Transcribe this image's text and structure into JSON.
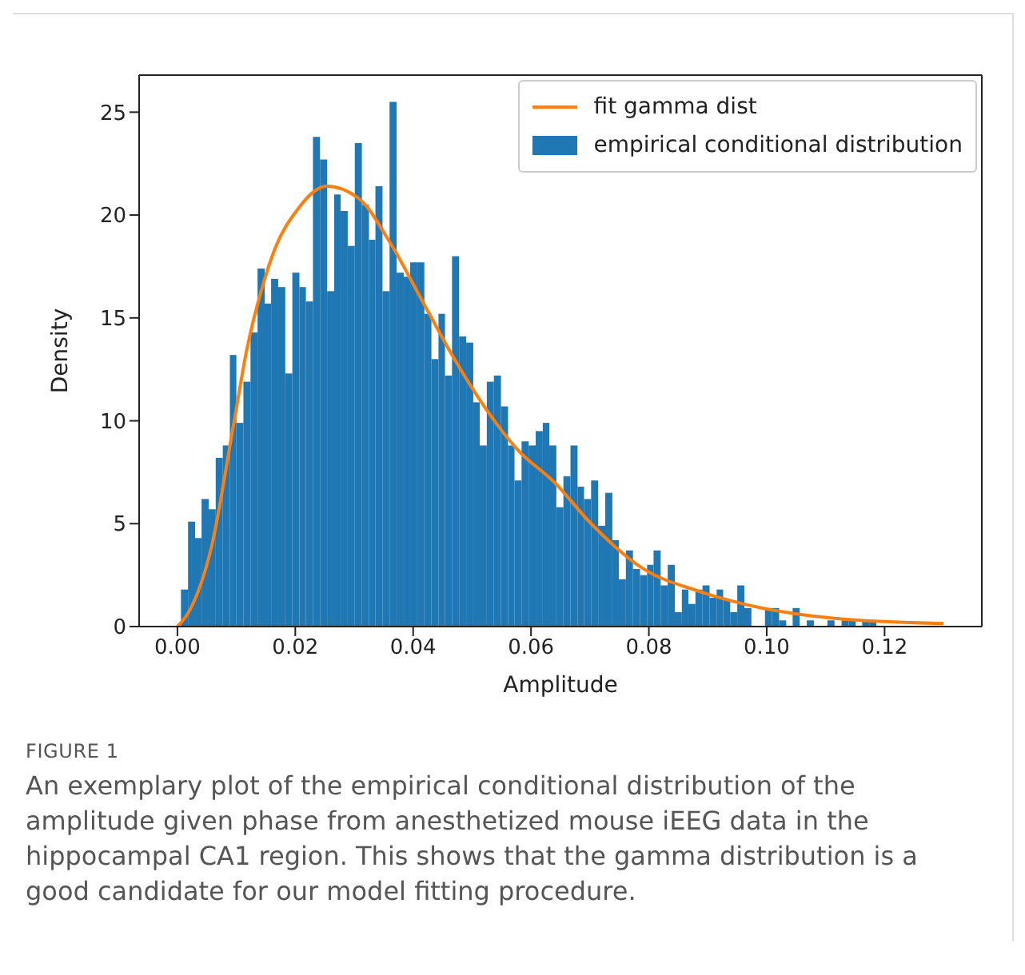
{
  "chart_data": {
    "type": "histogram",
    "xlabel": "Amplitude",
    "ylabel": "Density",
    "xlim": [
      -0.0065,
      0.1365
    ],
    "ylim": [
      0,
      26.8
    ],
    "xticks": [
      {
        "value": 0,
        "label": "0.00"
      },
      {
        "value": 0.02,
        "label": "0.02"
      },
      {
        "value": 0.04,
        "label": "0.04"
      },
      {
        "value": 0.06,
        "label": "0.06"
      },
      {
        "value": 0.08,
        "label": "0.08"
      },
      {
        "value": 0.1,
        "label": "0.10"
      },
      {
        "value": 0.12,
        "label": "0.12"
      }
    ],
    "yticks": [
      0,
      5,
      10,
      15,
      20,
      25
    ],
    "grid": false,
    "legend": "top right",
    "series": [
      {
        "type": "line",
        "name": "fit gamma dist",
        "color": "#ff7f0e",
        "x": [
          0,
          0.0022,
          0.0058,
          0.0094,
          0.0118,
          0.0142,
          0.0166,
          0.0202,
          0.0253,
          0.0308,
          0.036,
          0.0416,
          0.047,
          0.0523,
          0.0577,
          0.064,
          0.0702,
          0.0791,
          0.0881,
          0.096,
          0.1115,
          0.13
        ],
        "values": [
          0,
          0.85,
          3.9,
          9.6,
          13.5,
          16.3,
          18.4,
          20.2,
          21.4,
          20.8,
          18.7,
          15.8,
          13.0,
          10.6,
          8.6,
          7.0,
          5.0,
          2.8,
          1.75,
          1.1,
          0.4,
          0.15
        ]
      },
      {
        "name": "empirical conditional distribution",
        "color": "#1f77b4",
        "bins": [
          0.0006,
          0.0018,
          0.003,
          0.0041,
          0.0053,
          0.0065,
          0.0077,
          0.0089,
          0.01,
          0.0112,
          0.0124,
          0.0136,
          0.0148,
          0.0159,
          0.0171,
          0.0183,
          0.0195,
          0.0207,
          0.0218,
          0.023,
          0.0242,
          0.0254,
          0.0266,
          0.0277,
          0.0289,
          0.0301,
          0.0313,
          0.0325,
          0.0336,
          0.0348,
          0.036,
          0.0372,
          0.0384,
          0.0395,
          0.0407,
          0.0419,
          0.0431,
          0.0443,
          0.0454,
          0.0466,
          0.0478,
          0.049,
          0.0502,
          0.0513,
          0.0525,
          0.0537,
          0.0549,
          0.0561,
          0.0572,
          0.0584,
          0.0596,
          0.0608,
          0.062,
          0.0631,
          0.0643,
          0.0655,
          0.0667,
          0.0679,
          0.069,
          0.0702,
          0.0714,
          0.0726,
          0.0738,
          0.0749,
          0.0761,
          0.0773,
          0.0785,
          0.0797,
          0.0808,
          0.082,
          0.0832,
          0.0844,
          0.0856,
          0.0867,
          0.0879,
          0.0891,
          0.0903,
          0.0915,
          0.0926,
          0.0938,
          0.095,
          0.0962,
          0.0974,
          0.0997,
          0.1009,
          0.1021,
          0.1033,
          0.1044,
          0.1056,
          0.1068,
          0.108,
          0.1103,
          0.1115,
          0.1127,
          0.1139,
          0.1151,
          0.1162,
          0.1174,
          0.1186
        ],
        "values": [
          1.8,
          5.1,
          4.3,
          6.2,
          5.7,
          8.2,
          8.8,
          13.2,
          9.9,
          11.9,
          14.3,
          17.4,
          15.7,
          16.9,
          16.5,
          12.3,
          17.2,
          16.5,
          15.8,
          23.8,
          22.7,
          16.3,
          21.0,
          20.2,
          18.5,
          23.5,
          20.5,
          18.8,
          21.4,
          16.3,
          25.5,
          17.2,
          17.0,
          17.7,
          17.7,
          15.2,
          13.0,
          15.2,
          12.2,
          18.0,
          14.1,
          13.8,
          10.9,
          8.8,
          11.9,
          12.2,
          10.7,
          8.8,
          7.1,
          9.0,
          8.8,
          9.5,
          9.9,
          8.8,
          5.8,
          7.3,
          8.8,
          6.8,
          6.2,
          7.1,
          4.9,
          6.5,
          4.2,
          2.3,
          3.7,
          2.8,
          2.5,
          3.0,
          3.7,
          2.0,
          3.0,
          0.7,
          1.8,
          1.1,
          1.8,
          2.0,
          1.4,
          1.8,
          1.3,
          0.7,
          2.0,
          0.9,
          0,
          0.9,
          0.9,
          0.3,
          0,
          0.9,
          0,
          0.3,
          0,
          0.3,
          0,
          0.3,
          0.3,
          0,
          0.3,
          0.3
        ]
      }
    ],
    "annotations": [
      "FIGURE 1",
      "An exemplary plot of the empirical conditional distribution of the amplitude given phase from anesthetized mouse iEEG data in the hippocampal CA1 region. This shows that the gamma distribution is a good candidate for our model fitting procedure."
    ]
  }
}
